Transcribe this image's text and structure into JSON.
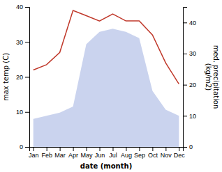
{
  "chart_data": {
    "type": "line",
    "categories": [
      "Jan",
      "Feb",
      "Mar",
      "Apr",
      "May",
      "Jun",
      "Jul",
      "Aug",
      "Sep",
      "Oct",
      "Nov",
      "Dec"
    ],
    "xlabel": "date (month)",
    "ylabel": "max temp (C)",
    "y2label": "med. precipitation\n(kg/m2)",
    "ylim": [
      0,
      40
    ],
    "yticks": [
      0,
      10,
      20,
      30,
      40
    ],
    "y2lim": [
      0,
      45
    ],
    "y2ticks": [
      0,
      10,
      20,
      30,
      40
    ],
    "grid": false,
    "series": [
      {
        "type": "area",
        "axis": "y2",
        "color": "#b8c4e8",
        "values": [
          9,
          10,
          11,
          13,
          33,
          37,
          38,
          37,
          35,
          18,
          12,
          10
        ]
      },
      {
        "type": "line",
        "color": "#c0392b",
        "values": [
          22,
          23.5,
          27,
          39,
          37.5,
          36,
          38,
          36,
          36,
          32,
          24,
          18
        ]
      }
    ]
  }
}
